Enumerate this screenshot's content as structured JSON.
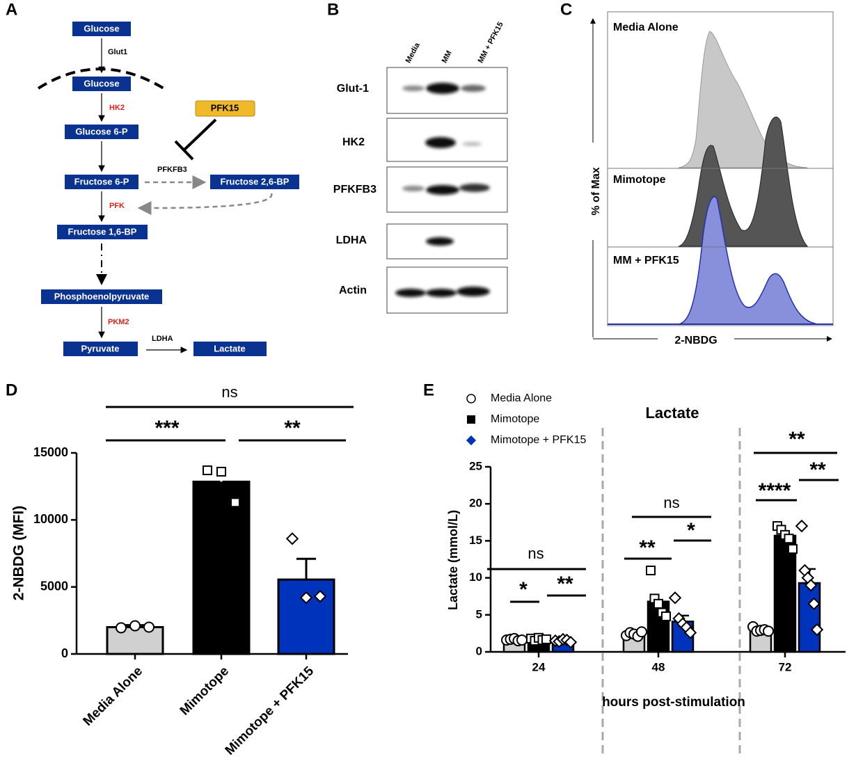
{
  "panel_labels": [
    "A",
    "B",
    "C",
    "D",
    "E"
  ],
  "pathway": {
    "nodes": [
      "Glucose",
      "Glucose",
      "Glucose 6-P",
      "Fructose 6-P",
      "Fructose 2,6-BP",
      "Fructose 1,6-BP",
      "Phosphoenolpyruvate",
      "Pyruvate",
      "Lactate"
    ],
    "enzymes": [
      "Glut1",
      "HK2",
      "PFKFB3",
      "PFK",
      "PKM2",
      "LDHA"
    ],
    "inhibitor": "PFK15"
  },
  "blot": {
    "lanes": [
      "Media",
      "MM",
      "MM + PFK15"
    ],
    "rows": [
      "Glut-1",
      "HK2",
      "PFKFB3",
      "LDHA",
      "Actin"
    ]
  },
  "flow": {
    "samples": [
      "Media Alone",
      "Mimotope",
      "MM + PFK15"
    ],
    "y_label": "% of Max",
    "x_label": "2-NBDG"
  },
  "chart_data": [
    {
      "type": "bar",
      "y_label": "2-NBDG (MFI)",
      "categories": [
        "Media Alone",
        "Mimotope",
        "Mimotope + PFK15"
      ],
      "values": [
        2000,
        12850,
        5550
      ],
      "errors": [
        150,
        800,
        1550
      ],
      "points": [
        [
          1950,
          2100,
          2000
        ],
        [
          13700,
          13600,
          11300
        ],
        [
          8600,
          4200,
          4300
        ]
      ],
      "colors": [
        "#d0d0d0",
        "#000000",
        "#0033bb"
      ],
      "markers": [
        "circle",
        "square",
        "diamond"
      ],
      "ylim": [
        0,
        15000
      ],
      "yticks": [
        0,
        5000,
        10000,
        15000
      ],
      "annotations": [
        "ns",
        "***",
        "**"
      ]
    },
    {
      "type": "bar",
      "title": "Lactate",
      "y_label": "Lactate (mmol/L)",
      "x_label": "hours post-stimulation",
      "categories": [
        "24",
        "48",
        "72"
      ],
      "series": [
        {
          "name": "Media Alone",
          "color": "#d0d0d0",
          "marker": "circle",
          "values": [
            1.7,
            2.4,
            3.0
          ],
          "errors": [
            0.1,
            0.2,
            0.2
          ],
          "points": [
            [
              1.6,
              1.7,
              1.8,
              1.5,
              1.6
            ],
            [
              2.2,
              2.6,
              2.4,
              2.1,
              2.7
            ],
            [
              3.4,
              2.8,
              2.9,
              3.0,
              2.8
            ]
          ]
        },
        {
          "name": "Mimotope",
          "color": "#000000",
          "marker": "square",
          "values": [
            1.7,
            6.8,
            15.7
          ],
          "errors": [
            0.1,
            0.9,
            0.6
          ],
          "points": [
            [
              1.8,
              1.5,
              1.9,
              1.6,
              1.7
            ],
            [
              11.0,
              7.2,
              6.5,
              5.3,
              4.8
            ],
            [
              17.0,
              16.5,
              15.8,
              15.3,
              13.9
            ]
          ]
        },
        {
          "name": "Mimotope + PFK15",
          "color": "#0033bb",
          "marker": "diamond",
          "values": [
            1.5,
            4.1,
            9.3
          ],
          "errors": [
            0.1,
            0.8,
            1.9
          ],
          "points": [
            [
              1.5,
              1.4,
              1.7,
              1.6,
              1.3
            ],
            [
              7.3,
              4.5,
              3.8,
              3.3,
              2.6
            ],
            [
              17.0,
              11.0,
              10.0,
              9.0,
              6.5,
              3.0
            ]
          ]
        }
      ],
      "ylim": [
        0,
        25
      ],
      "yticks": [
        0,
        5,
        10,
        15,
        20,
        25
      ],
      "annotations": [
        "ns",
        "*",
        "**",
        "ns",
        "**",
        "*",
        "**",
        "****",
        "**"
      ]
    }
  ]
}
